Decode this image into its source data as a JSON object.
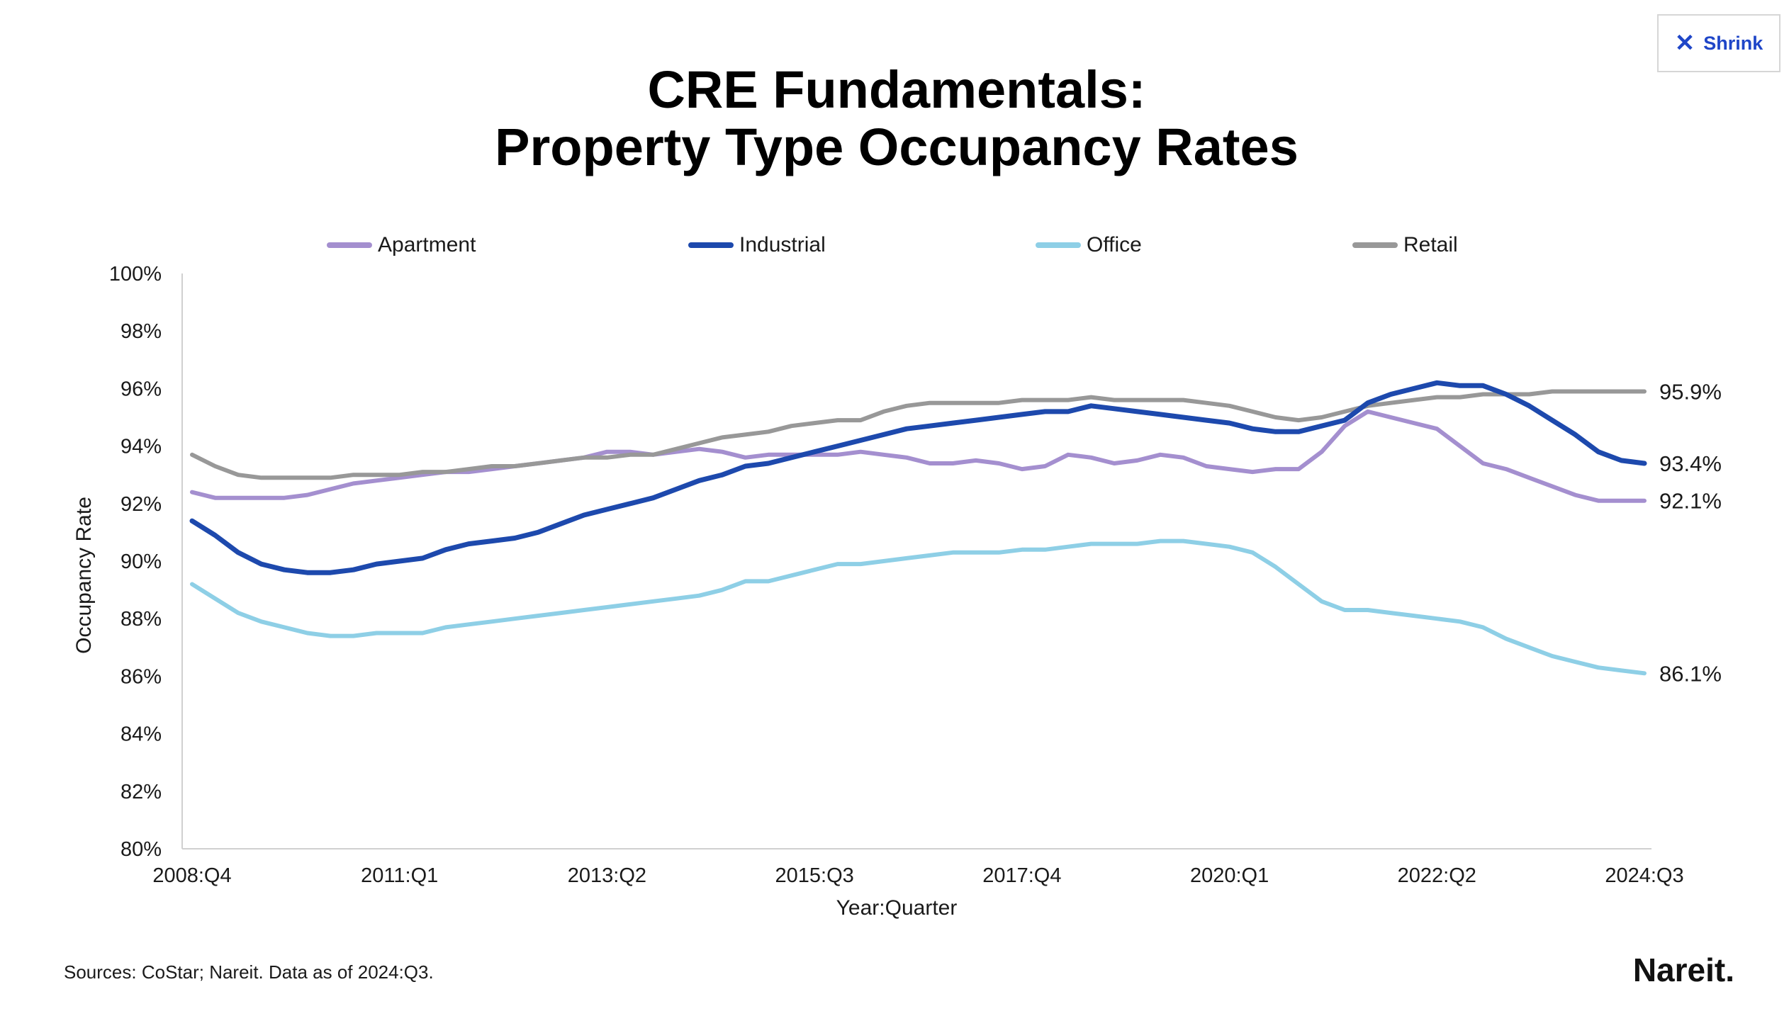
{
  "shrink_button": {
    "label": "Shrink",
    "icon": "close-icon"
  },
  "sources": "Sources: CoStar; Nareit. Data as of 2024:Q3.",
  "logo": "Nareit.",
  "chart_data": {
    "type": "line",
    "title": "CRE Fundamentals:",
    "subtitle": "Property Type Occupancy Rates",
    "xlabel": "Year:Quarter",
    "ylabel": "Occupancy Rate",
    "ylim": [
      80,
      100
    ],
    "yticks": [
      "80%",
      "82%",
      "84%",
      "86%",
      "88%",
      "90%",
      "92%",
      "94%",
      "96%",
      "98%",
      "100%"
    ],
    "xticks": [
      {
        "label": "2008:Q4",
        "index": 0
      },
      {
        "label": "2011:Q1",
        "index": 9
      },
      {
        "label": "2013:Q2",
        "index": 18
      },
      {
        "label": "2015:Q3",
        "index": 27
      },
      {
        "label": "2017:Q4",
        "index": 36
      },
      {
        "label": "2020:Q1",
        "index": 45
      },
      {
        "label": "2022:Q2",
        "index": 54
      },
      {
        "label": "2024:Q3",
        "index": 63
      }
    ],
    "x_start": "2008:Q4",
    "x_end": "2024:Q3",
    "grid": false,
    "legend_position": "top",
    "end_labels": [
      {
        "series": "Retail",
        "text": "95.9%"
      },
      {
        "series": "Industrial",
        "text": "93.4%"
      },
      {
        "series": "Apartment",
        "text": "92.1%"
      },
      {
        "series": "Office",
        "text": "86.1%"
      }
    ],
    "series": [
      {
        "name": "Apartment",
        "color": "#a48fcf",
        "values": [
          92.4,
          92.2,
          92.2,
          92.2,
          92.2,
          92.3,
          92.5,
          92.7,
          92.8,
          92.9,
          93.0,
          93.1,
          93.1,
          93.2,
          93.3,
          93.4,
          93.5,
          93.6,
          93.8,
          93.8,
          93.7,
          93.8,
          93.9,
          93.8,
          93.6,
          93.7,
          93.7,
          93.7,
          93.7,
          93.8,
          93.7,
          93.6,
          93.4,
          93.4,
          93.5,
          93.4,
          93.2,
          93.3,
          93.7,
          93.6,
          93.4,
          93.5,
          93.7,
          93.6,
          93.3,
          93.2,
          93.1,
          93.2,
          93.2,
          93.8,
          94.7,
          95.2,
          95.0,
          94.8,
          94.6,
          94.0,
          93.4,
          93.2,
          92.9,
          92.6,
          92.3,
          92.1,
          92.1,
          92.1
        ]
      },
      {
        "name": "Industrial",
        "color": "#1d49ad",
        "values": [
          91.4,
          90.9,
          90.3,
          89.9,
          89.7,
          89.6,
          89.6,
          89.7,
          89.9,
          90.0,
          90.1,
          90.4,
          90.6,
          90.7,
          90.8,
          91.0,
          91.3,
          91.6,
          91.8,
          92.0,
          92.2,
          92.5,
          92.8,
          93.0,
          93.3,
          93.4,
          93.6,
          93.8,
          94.0,
          94.2,
          94.4,
          94.6,
          94.7,
          94.8,
          94.9,
          95.0,
          95.1,
          95.2,
          95.2,
          95.4,
          95.3,
          95.2,
          95.1,
          95.0,
          94.9,
          94.8,
          94.6,
          94.5,
          94.5,
          94.7,
          94.9,
          95.5,
          95.8,
          96.0,
          96.2,
          96.1,
          96.1,
          95.8,
          95.4,
          94.9,
          94.4,
          93.8,
          93.5,
          93.4
        ]
      },
      {
        "name": "Office",
        "color": "#8ecfe6",
        "values": [
          89.2,
          88.7,
          88.2,
          87.9,
          87.7,
          87.5,
          87.4,
          87.4,
          87.5,
          87.5,
          87.5,
          87.7,
          87.8,
          87.9,
          88.0,
          88.1,
          88.2,
          88.3,
          88.4,
          88.5,
          88.6,
          88.7,
          88.8,
          89.0,
          89.3,
          89.3,
          89.5,
          89.7,
          89.9,
          89.9,
          90.0,
          90.1,
          90.2,
          90.3,
          90.3,
          90.3,
          90.4,
          90.4,
          90.5,
          90.6,
          90.6,
          90.6,
          90.7,
          90.7,
          90.6,
          90.5,
          90.3,
          89.8,
          89.2,
          88.6,
          88.3,
          88.3,
          88.2,
          88.1,
          88.0,
          87.9,
          87.7,
          87.3,
          87.0,
          86.7,
          86.5,
          86.3,
          86.2,
          86.1
        ]
      },
      {
        "name": "Retail",
        "color": "#989898",
        "values": [
          93.7,
          93.3,
          93.0,
          92.9,
          92.9,
          92.9,
          92.9,
          93.0,
          93.0,
          93.0,
          93.1,
          93.1,
          93.2,
          93.3,
          93.3,
          93.4,
          93.5,
          93.6,
          93.6,
          93.7,
          93.7,
          93.9,
          94.1,
          94.3,
          94.4,
          94.5,
          94.7,
          94.8,
          94.9,
          94.9,
          95.2,
          95.4,
          95.5,
          95.5,
          95.5,
          95.5,
          95.6,
          95.6,
          95.6,
          95.7,
          95.6,
          95.6,
          95.6,
          95.6,
          95.5,
          95.4,
          95.2,
          95.0,
          94.9,
          95.0,
          95.2,
          95.4,
          95.5,
          95.6,
          95.7,
          95.7,
          95.8,
          95.8,
          95.8,
          95.9,
          95.9,
          95.9,
          95.9,
          95.9
        ]
      }
    ]
  }
}
